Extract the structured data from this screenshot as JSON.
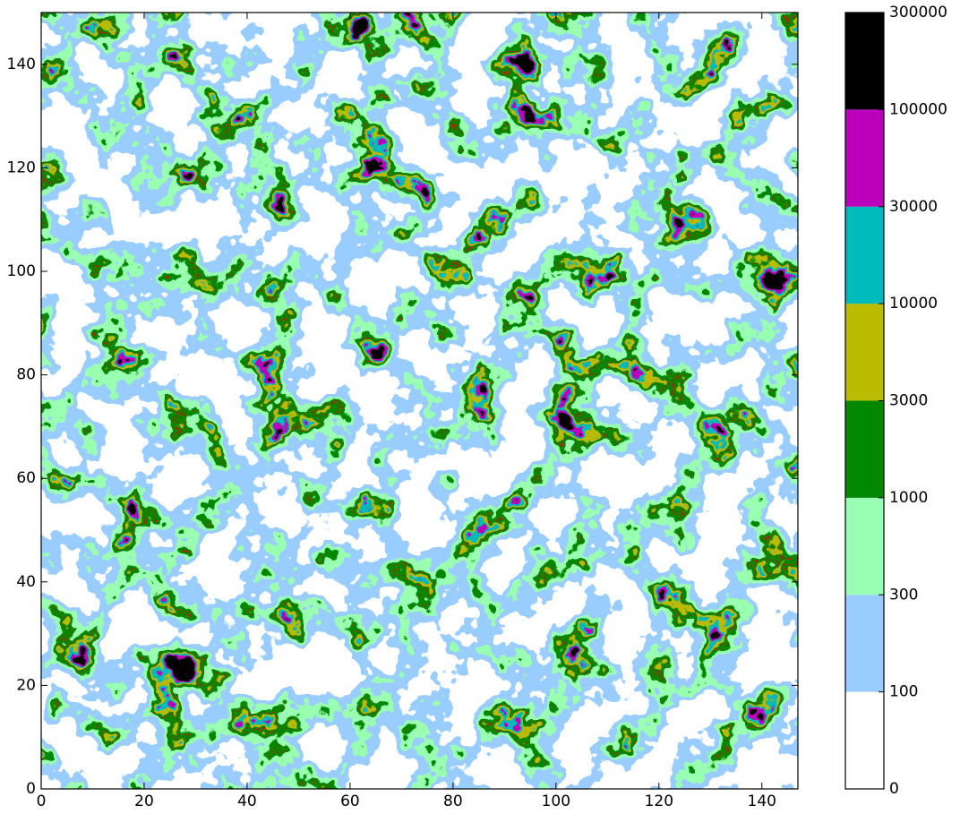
{
  "chart_data": {
    "type": "contour",
    "xlim": [
      0,
      147
    ],
    "ylim": [
      0,
      150
    ],
    "xticks": [
      0,
      20,
      40,
      60,
      80,
      100,
      120,
      140
    ],
    "yticks": [
      0,
      20,
      40,
      60,
      80,
      100,
      120,
      140
    ],
    "levels": [
      0,
      100,
      300,
      1000,
      3000,
      10000,
      30000,
      100000,
      300000
    ],
    "colors": [
      "#ffffff",
      "#99ccff",
      "#99ffb2",
      "#008800",
      "#bbbb00",
      "#00bbbb",
      "#bb00bb",
      "#000000"
    ],
    "line_colors": [
      "#ee0000",
      "#ffffff"
    ]
  }
}
